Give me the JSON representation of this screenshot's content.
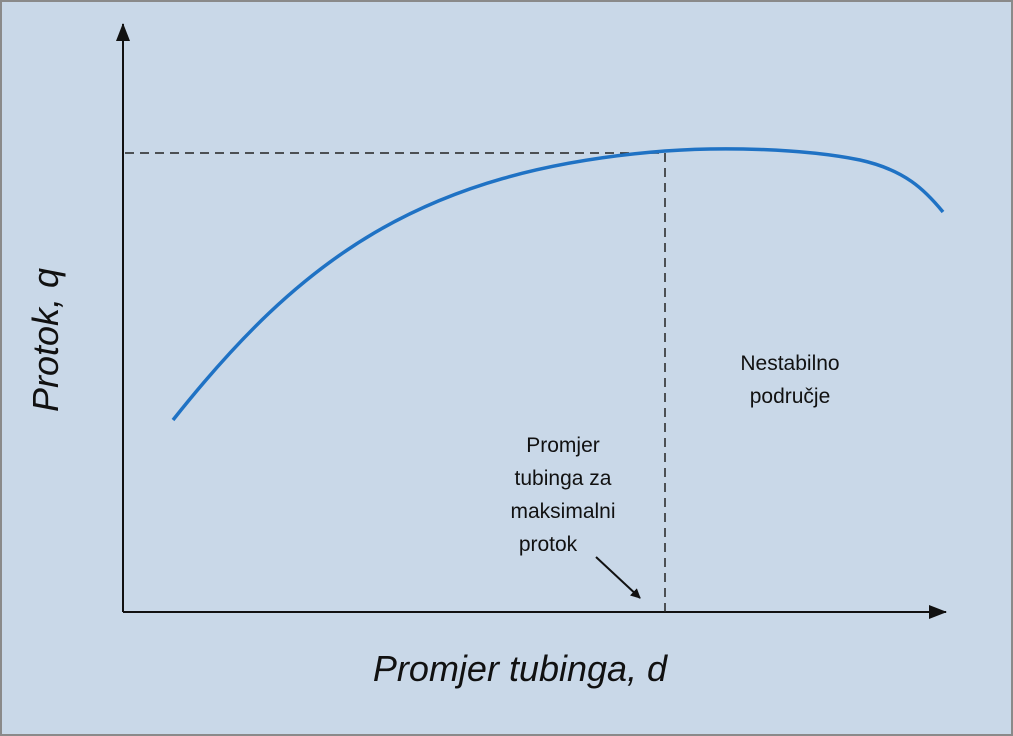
{
  "diagram": {
    "y_axis_label": "Protok, q",
    "x_axis_label": "Promjer tubinga, d",
    "region_label": [
      "Nestabilno",
      "područje"
    ],
    "optimum_label": [
      "Promjer",
      "tubinga za",
      "maksimalni",
      "protok"
    ]
  }
}
